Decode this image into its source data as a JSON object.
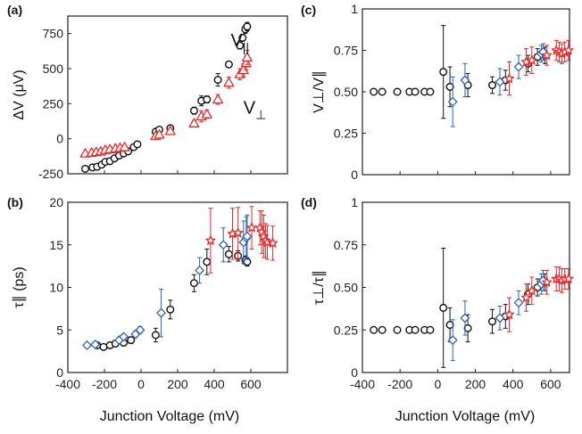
{
  "colors": {
    "black": "#111111",
    "red": "#e8282a",
    "blue": "#2f62ad"
  },
  "figure": {
    "xlabel_bottom_left": "Junction Voltage (mV)",
    "xlabel_bottom_right": "Junction Voltage (mV)"
  },
  "chart_data": [
    {
      "panel": "(a)",
      "type": "scatter",
      "ylabel": "ΔV (μV)",
      "xlim": [
        -400,
        800
      ],
      "ylim": [
        -250,
        875
      ],
      "xticks": [
        -400,
        -200,
        0,
        200,
        400,
        600
      ],
      "yticks": [
        -250,
        0,
        250,
        500,
        750
      ],
      "annotations": [
        {
          "text": "V",
          "sub": "||",
          "x": 490,
          "y": 660
        },
        {
          "text": "V",
          "sub": "⊥",
          "x": 560,
          "y": 180
        }
      ],
      "series": [
        {
          "name": "V∥",
          "marker": "circle",
          "color": "#111111",
          "x": [
            -305,
            -265,
            -240,
            -215,
            -195,
            -170,
            -145,
            -120,
            -95,
            -70,
            -40,
            -20,
            80,
            100,
            160,
            290,
            330,
            360,
            420,
            480,
            540,
            555,
            570,
            580
          ],
          "y": [
            -215,
            -205,
            -200,
            -185,
            -165,
            -160,
            -140,
            -120,
            -105,
            -90,
            -60,
            -40,
            50,
            65,
            75,
            200,
            270,
            280,
            420,
            530,
            665,
            720,
            780,
            800
          ],
          "err": [
            0,
            0,
            0,
            0,
            0,
            0,
            0,
            0,
            0,
            0,
            0,
            0,
            15,
            15,
            20,
            25,
            35,
            25,
            45,
            20,
            25,
            25,
            30,
            30
          ]
        },
        {
          "name": "V⊥",
          "marker": "triangle",
          "color": "#e8282a",
          "x": [
            -305,
            -270,
            -245,
            -220,
            -195,
            -170,
            -140,
            -115,
            -90,
            80,
            100,
            160,
            290,
            330,
            360,
            420,
            480,
            540,
            560,
            575,
            580
          ],
          "y": [
            -105,
            -100,
            -95,
            -90,
            -80,
            -75,
            -70,
            -65,
            -60,
            20,
            30,
            55,
            110,
            160,
            175,
            280,
            400,
            460,
            490,
            540,
            580
          ],
          "err": [
            0,
            0,
            0,
            0,
            0,
            0,
            0,
            0,
            0,
            15,
            15,
            20,
            20,
            40,
            30,
            35,
            40,
            40,
            45,
            50,
            50
          ]
        }
      ]
    },
    {
      "panel": "(b)",
      "type": "scatter",
      "ylabel": "τ∥ (ps)",
      "xlim": [
        -400,
        800
      ],
      "ylim": [
        0,
        20
      ],
      "xticks": [
        -400,
        -200,
        0,
        200,
        400,
        600
      ],
      "yticks": [
        0,
        5,
        10,
        15,
        20
      ],
      "series": [
        {
          "name": "",
          "marker": "circle",
          "color": "#111111",
          "x": [
            -240,
            -205,
            -170,
            -140,
            -95,
            -55,
            80,
            160,
            290,
            360,
            480,
            530,
            570,
            580
          ],
          "y": [
            3.2,
            3.0,
            3.2,
            3.4,
            3.5,
            3.8,
            4.4,
            7.4,
            10.5,
            13.0,
            13.9,
            13.7,
            13.2,
            13.0
          ],
          "err": [
            0.3,
            0.3,
            0.3,
            0.3,
            0.3,
            0.4,
            0.8,
            1.1,
            1.0,
            1.5,
            0.9,
            0.6,
            0.5,
            0.5
          ]
        },
        {
          "name": "",
          "marker": "diamond",
          "color": "#2f62ad",
          "x": [
            -295,
            -250,
            -120,
            -95,
            -30,
            -5,
            110,
            320,
            450,
            560,
            575,
            580
          ],
          "y": [
            3.2,
            3.3,
            3.8,
            4.2,
            4.5,
            5.0,
            7.0,
            12.0,
            15.0,
            15.3,
            15.8,
            16.0
          ],
          "err": [
            0,
            0,
            0.3,
            0.3,
            0.4,
            0.4,
            2.8,
            1.5,
            2.0,
            2.5,
            2.5,
            2.5
          ]
        },
        {
          "name": "",
          "marker": "star",
          "color": "#e8282a",
          "x": [
            380,
            500,
            530,
            605,
            650,
            660,
            670,
            680,
            690,
            720
          ],
          "y": [
            15.5,
            16.3,
            16.4,
            17.0,
            17.0,
            16.5,
            16.0,
            15.5,
            15.3,
            15.2
          ],
          "err": [
            3.8,
            3.0,
            3.0,
            2.5,
            2.0,
            2.5,
            2.5,
            2.0,
            2.0,
            2.0
          ]
        }
      ]
    },
    {
      "panel": "(c)",
      "type": "scatter",
      "ylabel": "V⊥/V∥",
      "xlim": [
        -400,
        700
      ],
      "ylim": [
        0,
        1
      ],
      "xticks": [
        -400,
        -200,
        0,
        200,
        400,
        600
      ],
      "yticks": [
        0,
        0.25,
        0.5,
        0.75,
        1
      ],
      "ytick_labels": [
        "0",
        "0.25",
        "0.50",
        "0.75",
        "1"
      ],
      "series": [
        {
          "name": "",
          "marker": "circle",
          "color": "#111111",
          "x": [
            -340,
            -295,
            -215,
            -150,
            -120,
            -70,
            -40,
            30,
            65,
            160,
            290,
            360,
            480,
            530,
            570
          ],
          "y": [
            0.5,
            0.5,
            0.5,
            0.5,
            0.5,
            0.5,
            0.5,
            0.62,
            0.53,
            0.54,
            0.54,
            0.57,
            0.67,
            0.71,
            0.72
          ],
          "err": [
            0,
            0,
            0,
            0,
            0,
            0,
            0,
            0.28,
            0.12,
            0.07,
            0.05,
            0.06,
            0.05,
            0.05,
            0.05
          ]
        },
        {
          "name": "",
          "marker": "diamond",
          "color": "#2f62ad",
          "x": [
            80,
            145,
            330,
            430,
            550,
            560
          ],
          "y": [
            0.44,
            0.57,
            0.56,
            0.65,
            0.73,
            0.74
          ],
          "err": [
            0.15,
            0.1,
            0.08,
            0.07,
            0.05,
            0.05
          ]
        },
        {
          "name": "",
          "marker": "star",
          "color": "#e8282a",
          "x": [
            380,
            470,
            500,
            580,
            630,
            645,
            660,
            675,
            695
          ],
          "y": [
            0.58,
            0.68,
            0.69,
            0.72,
            0.75,
            0.74,
            0.73,
            0.74,
            0.75
          ],
          "err": [
            0.1,
            0.08,
            0.08,
            0.06,
            0.06,
            0.06,
            0.06,
            0.06,
            0.06
          ]
        }
      ]
    },
    {
      "panel": "(d)",
      "type": "scatter",
      "ylabel": "τ⊥/τ∥",
      "xlim": [
        -400,
        700
      ],
      "ylim": [
        0,
        1
      ],
      "xticks": [
        -400,
        -200,
        0,
        200,
        400,
        600
      ],
      "yticks": [
        0,
        0.25,
        0.5,
        0.75,
        1
      ],
      "ytick_labels": [
        "0",
        "0.25",
        "0.50",
        "0.75",
        "1"
      ],
      "series": [
        {
          "name": "",
          "marker": "circle",
          "color": "#111111",
          "x": [
            -340,
            -295,
            -215,
            -150,
            -120,
            -70,
            -40,
            30,
            65,
            160,
            290,
            360,
            480,
            530,
            570
          ],
          "y": [
            0.25,
            0.25,
            0.25,
            0.25,
            0.25,
            0.25,
            0.25,
            0.38,
            0.28,
            0.26,
            0.3,
            0.33,
            0.46,
            0.5,
            0.53
          ],
          "err": [
            0,
            0,
            0,
            0,
            0,
            0,
            0,
            0.35,
            0.1,
            0.08,
            0.07,
            0.07,
            0.06,
            0.05,
            0.05
          ]
        },
        {
          "name": "",
          "marker": "diamond",
          "color": "#2f62ad",
          "x": [
            80,
            145,
            330,
            430,
            550,
            560
          ],
          "y": [
            0.19,
            0.32,
            0.32,
            0.41,
            0.52,
            0.54
          ],
          "err": [
            0.12,
            0.1,
            0.07,
            0.07,
            0.06,
            0.06
          ]
        },
        {
          "name": "",
          "marker": "star",
          "color": "#e8282a",
          "x": [
            380,
            470,
            500,
            580,
            630,
            645,
            660,
            675,
            695
          ],
          "y": [
            0.34,
            0.44,
            0.48,
            0.53,
            0.55,
            0.55,
            0.54,
            0.55,
            0.55
          ],
          "err": [
            0.1,
            0.08,
            0.08,
            0.07,
            0.07,
            0.07,
            0.07,
            0.06,
            0.06
          ]
        }
      ]
    }
  ]
}
